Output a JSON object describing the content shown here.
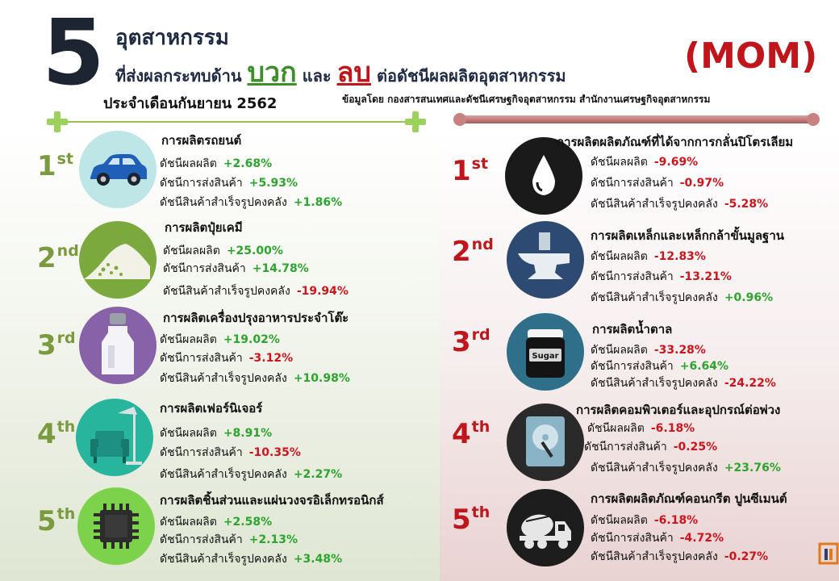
{
  "header": {
    "big_number": "5",
    "title_line1": "อุตสาหกรรม",
    "title_pre": "ที่ส่งผลกระทบด้าน",
    "positive_word": "บวก",
    "conjunction": "และ",
    "negative_word": "ลบ",
    "title_post": "ต่อดัชนีผลผลิตอุตสาหกรรม",
    "period": "ประจำเดือนกันยายน 2562",
    "source": "ข้อมูลโดย กองสารสนเทศและดัชนีเศรษฐกิจอุตสาหกรรม สำนักงานเศรษฐกิจอุตสาหกรรม",
    "badge": "(MOM)"
  },
  "colors": {
    "positive": "#2ba52b",
    "negative": "#d0141b",
    "left_rank": "#7a9a3e",
    "right_rank": "#c0161b"
  },
  "positive_items": [
    {
      "rank": "1",
      "suffix": "st",
      "icon": "car-icon",
      "title": "การผลิตรถยนต์",
      "lines": [
        {
          "label": "ดัชนีผลผลิต",
          "value": "+2.68%"
        },
        {
          "label": "ดัชนีการส่งสินค้า",
          "value": "+5.93%"
        },
        {
          "label": "ดัชนีสินค้าสำเร็จรูปคงคลัง",
          "value": "+1.86%"
        }
      ]
    },
    {
      "rank": "2",
      "suffix": "nd",
      "icon": "fertilizer-pile-icon",
      "title": "การผลิตปุ๋ยเคมี",
      "lines": [
        {
          "label": "ดัชนีผลผลิต",
          "value": "+25.00%"
        },
        {
          "label": "ดัชนีการส่งสินค้า",
          "value": "+14.78%"
        },
        {
          "label": "ดัชนีสินค้าสำเร็จรูปคงคลัง",
          "value": "-19.94%"
        }
      ]
    },
    {
      "rank": "3",
      "suffix": "rd",
      "icon": "condiment-bottle-icon",
      "title": "การผลิตเครื่องปรุงอาหารประจำโต๊ะ",
      "lines": [
        {
          "label": "ดัชนีผลผลิต",
          "value": "+19.02%"
        },
        {
          "label": "ดัชนีการส่งสินค้า",
          "value": "-3.12%"
        },
        {
          "label": "ดัชนีสินค้าสำเร็จรูปคงคลัง",
          "value": "+10.98%"
        }
      ]
    },
    {
      "rank": "4",
      "suffix": "th",
      "icon": "armchair-lamp-icon",
      "title": "การผลิตเฟอร์นิเจอร์",
      "lines": [
        {
          "label": "ดัชนีผลผลิต",
          "value": "+8.91%"
        },
        {
          "label": "ดัชนีการส่งสินค้า",
          "value": "-10.35%"
        },
        {
          "label": "ดัชนีสินค้าสำเร็จรูปคงคลัง",
          "value": "+2.27%"
        }
      ]
    },
    {
      "rank": "5",
      "suffix": "th",
      "icon": "microchip-icon",
      "title": "การผลิตชิ้นส่วนและแผ่นวงจรอิเล็กทรอนิกส์",
      "lines": [
        {
          "label": "ดัชนีผลผลิต",
          "value": "+2.58%"
        },
        {
          "label": "ดัชนีการส่งสินค้า",
          "value": "+2.13%"
        },
        {
          "label": "ดัชนีสินค้าสำเร็จรูปคงคลัง",
          "value": "+3.48%"
        }
      ]
    }
  ],
  "negative_items": [
    {
      "rank": "1",
      "suffix": "st",
      "icon": "oil-drop-icon",
      "title": "การผลิตผลิตภัณฑ์ที่ได้จากการกลั่นปิโตรเลียม",
      "lines": [
        {
          "label": "ดัชนีผลผลิต",
          "value": "-9.69%"
        },
        {
          "label": "ดัชนีการส่งสินค้า",
          "value": "-0.97%"
        },
        {
          "label": "ดัชนีสินค้าสำเร็จรูปคงคลัง",
          "value": "-5.28%"
        }
      ]
    },
    {
      "rank": "2",
      "suffix": "nd",
      "icon": "anvil-icon",
      "title": "การผลิตเหล็กและเหล็กกล้าขั้นมูลฐาน",
      "lines": [
        {
          "label": "ดัชนีผลผลิต",
          "value": "-12.83%"
        },
        {
          "label": "ดัชนีการส่งสินค้า",
          "value": "-13.21%"
        },
        {
          "label": "ดัชนีสินค้าสำเร็จรูปคงคลัง",
          "value": "+0.96%"
        }
      ]
    },
    {
      "rank": "3",
      "suffix": "rd",
      "icon": "sugar-jar-icon",
      "jar_label": "Sugar",
      "title": "การผลิตน้ำตาล",
      "lines": [
        {
          "label": "ดัชนีผลผลิต",
          "value": "-33.28%"
        },
        {
          "label": "ดัชนีการส่งสินค้า",
          "value": "+6.64%"
        },
        {
          "label": "ดัชนีสินค้าสำเร็จรูปคงคลัง",
          "value": "-24.22%"
        }
      ]
    },
    {
      "rank": "4",
      "suffix": "th",
      "icon": "hard-disk-icon",
      "title": "การผลิตคอมพิวเตอร์และอุปกรณ์ต่อพ่วง",
      "lines": [
        {
          "label": "ดัชนีผลผลิต",
          "value": "-6.18%"
        },
        {
          "label": "ดัชนีการส่งสินค้า",
          "value": "-0.25%"
        },
        {
          "label": "ดัชนีสินค้าสำเร็จรูปคงคลัง",
          "value": "+23.76%"
        }
      ]
    },
    {
      "rank": "5",
      "suffix": "th",
      "icon": "cement-mixer-truck-icon",
      "title": "การผลิตผลิตภัณฑ์คอนกรีต ปูนซีเมนต์",
      "lines": [
        {
          "label": "ดัชนีผลผลิต",
          "value": "-6.18%"
        },
        {
          "label": "ดัชนีการส่งสินค้า",
          "value": "-4.72%"
        },
        {
          "label": "ดัชนีสินค้าสำเร็จรูปคงคลัง",
          "value": "-0.27%"
        }
      ]
    }
  ]
}
